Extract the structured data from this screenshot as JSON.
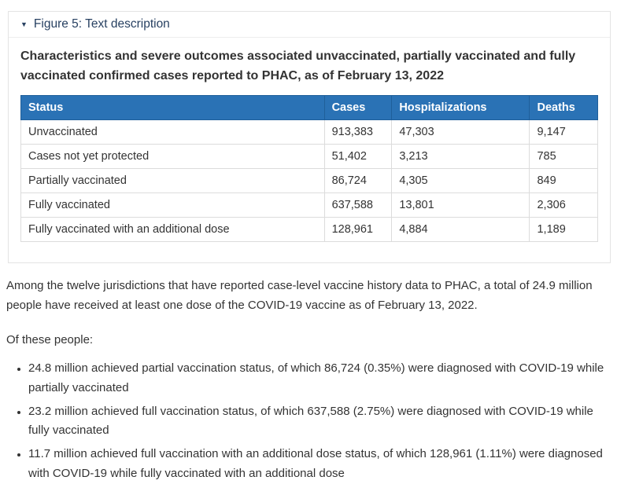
{
  "colors": {
    "summary-link": "#284162",
    "table-header-bg": "#2a72b5",
    "table-header-border": "#1f5f9a",
    "table-border": "#dcdcdc",
    "box-border": "#e4e4e4",
    "text": "#333333"
  },
  "figure_details": {
    "marker": "▼",
    "summary": "Figure 5: Text description",
    "title": "Characteristics and severe outcomes associated unvaccinated, partially vaccinated and fully vaccinated confirmed cases reported to PHAC, as of February 13, 2022"
  },
  "table": {
    "headers": [
      "Status",
      "Cases",
      "Hospitalizations",
      "Deaths"
    ],
    "rows": [
      [
        "Unvaccinated",
        "913,383",
        "47,303",
        "9,147"
      ],
      [
        "Cases not yet protected",
        "51,402",
        "3,213",
        "785"
      ],
      [
        "Partially vaccinated",
        "86,724",
        "4,305",
        "849"
      ],
      [
        "Fully vaccinated",
        "637,588",
        "13,801",
        "2,306"
      ],
      [
        "Fully vaccinated with an additional dose",
        "128,961",
        "4,884",
        "1,189"
      ]
    ]
  },
  "body_text": {
    "intro": "Among the twelve jurisdictions that have reported case-level vaccine history data to PHAC, a total of 24.9 million people have received at least one dose of the COVID-19 vaccine as of February 13, 2022.",
    "lead": "Of these people:",
    "bullets": [
      "24.8 million achieved partial vaccination status, of which 86,724 (0.35%) were diagnosed with COVID-19 while partially vaccinated",
      "23.2 million achieved full vaccination status, of which 637,588 (2.75%) were diagnosed with COVID-19 while fully vaccinated",
      "11.7 million achieved full vaccination with an additional dose status, of which 128,961 (1.11%) were diagnosed with COVID-19 while fully vaccinated with an additional dose"
    ]
  }
}
